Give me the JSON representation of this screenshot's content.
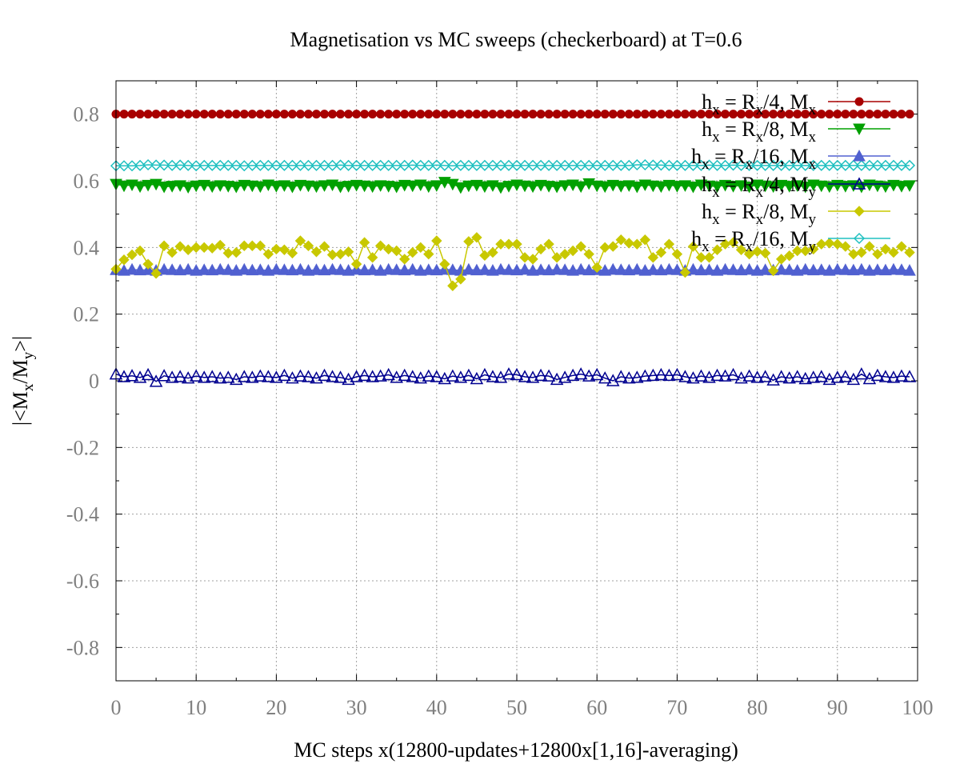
{
  "chart_data": {
    "type": "line",
    "title": "Magnetisation vs MC sweeps (checkerboard) at T=0.6",
    "xlabel": "MC steps x(12800-updates+12800x[1,16]-averaging)",
    "ylabel_parts": {
      "open": "|<M",
      "x": "x",
      "slash": "/M",
      "y": "y",
      "close": ">|"
    },
    "xlim": [
      0,
      100
    ],
    "ylim": [
      -0.9,
      0.9
    ],
    "x_ticks": [
      0,
      10,
      20,
      30,
      40,
      50,
      60,
      70,
      80,
      90,
      100
    ],
    "x_tick_labels": [
      "0",
      "10",
      "20",
      "30",
      "40",
      "50",
      "60",
      "70",
      "80",
      "90",
      "100"
    ],
    "y_ticks": [
      -0.8,
      -0.6,
      -0.4,
      -0.2,
      0,
      0.2,
      0.4,
      0.6,
      0.8
    ],
    "y_tick_labels": [
      "-0.8",
      "-0.6",
      "-0.4",
      "-0.2",
      "0",
      "0.2",
      "0.4",
      "0.6",
      "0.8"
    ],
    "grid": true,
    "legend_position": "top-right",
    "series": [
      {
        "name": "h_x = R_x/4, M_x",
        "legend": {
          "h": "h",
          "hsub": "x",
          "mid": " = R",
          "rsub": "x",
          "frac": "/4, M",
          "msub": "x"
        },
        "color": "#a80000",
        "marker": "circle-filled",
        "values": [
          0.8,
          0.8,
          0.8,
          0.8,
          0.8,
          0.8,
          0.8,
          0.8,
          0.8,
          0.8,
          0.8,
          0.8,
          0.8,
          0.8,
          0.8,
          0.8,
          0.8,
          0.8,
          0.8,
          0.8,
          0.8,
          0.8,
          0.8,
          0.8,
          0.8,
          0.8,
          0.8,
          0.8,
          0.8,
          0.8,
          0.8,
          0.8,
          0.8,
          0.8,
          0.8,
          0.8,
          0.8,
          0.8,
          0.8,
          0.8,
          0.8,
          0.8,
          0.8,
          0.8,
          0.8,
          0.8,
          0.8,
          0.8,
          0.8,
          0.8,
          0.8,
          0.8,
          0.8,
          0.8,
          0.8,
          0.8,
          0.8,
          0.8,
          0.8,
          0.8,
          0.8,
          0.8,
          0.8,
          0.8,
          0.8,
          0.8,
          0.8,
          0.8,
          0.8,
          0.8,
          0.8,
          0.8,
          0.8,
          0.8,
          0.8,
          0.8,
          0.8,
          0.8,
          0.8,
          0.8,
          0.8,
          0.8,
          0.8,
          0.8,
          0.8,
          0.8,
          0.8,
          0.8,
          0.8,
          0.8,
          0.8,
          0.8,
          0.8,
          0.8,
          0.8,
          0.8,
          0.8,
          0.8,
          0.8,
          0.8
        ]
      },
      {
        "name": "h_x = R_x/8, M_x",
        "legend": {
          "h": "h",
          "hsub": "x",
          "mid": " = R",
          "rsub": "x",
          "frac": "/8, M",
          "msub": "x"
        },
        "color": "#00a000",
        "marker": "triangle-down-filled",
        "values": [
          0.59,
          0.585,
          0.588,
          0.583,
          0.587,
          0.59,
          0.582,
          0.584,
          0.586,
          0.581,
          0.585,
          0.587,
          0.583,
          0.586,
          0.584,
          0.582,
          0.587,
          0.585,
          0.583,
          0.588,
          0.584,
          0.586,
          0.582,
          0.587,
          0.585,
          0.583,
          0.586,
          0.588,
          0.582,
          0.584,
          0.587,
          0.585,
          0.583,
          0.586,
          0.584,
          0.582,
          0.587,
          0.585,
          0.588,
          0.583,
          0.586,
          0.596,
          0.59,
          0.58,
          0.585,
          0.587,
          0.583,
          0.586,
          0.58,
          0.584,
          0.588,
          0.585,
          0.583,
          0.587,
          0.584,
          0.582,
          0.586,
          0.588,
          0.583,
          0.592,
          0.585,
          0.583,
          0.587,
          0.584,
          0.586,
          0.582,
          0.588,
          0.585,
          0.583,
          0.587,
          0.584,
          0.586,
          0.582,
          0.588,
          0.585,
          0.583,
          0.587,
          0.584,
          0.586,
          0.582,
          0.588,
          0.585,
          0.583,
          0.587,
          0.584,
          0.586,
          0.582,
          0.588,
          0.585,
          0.583,
          0.587,
          0.584,
          0.586,
          0.582,
          0.588,
          0.585,
          0.583,
          0.587,
          0.584,
          0.586
        ]
      },
      {
        "name": "h_x = R_x/16, M_x",
        "legend": {
          "h": "h",
          "hsub": "x",
          "mid": " = R",
          "rsub": "x",
          "frac": "/16, M",
          "msub": "x"
        },
        "color": "#5060d0",
        "marker": "triangle-up-filled",
        "values": [
          0.333,
          0.331,
          0.334,
          0.332,
          0.333,
          0.331,
          0.334,
          0.333,
          0.332,
          0.334,
          0.331,
          0.333,
          0.332,
          0.334,
          0.333,
          0.331,
          0.334,
          0.332,
          0.333,
          0.331,
          0.334,
          0.333,
          0.332,
          0.334,
          0.331,
          0.333,
          0.332,
          0.334,
          0.333,
          0.331,
          0.334,
          0.332,
          0.333,
          0.331,
          0.334,
          0.333,
          0.332,
          0.334,
          0.331,
          0.333,
          0.332,
          0.334,
          0.333,
          0.331,
          0.334,
          0.332,
          0.333,
          0.331,
          0.334,
          0.333,
          0.332,
          0.334,
          0.331,
          0.333,
          0.332,
          0.334,
          0.333,
          0.331,
          0.334,
          0.332,
          0.333,
          0.331,
          0.334,
          0.333,
          0.332,
          0.334,
          0.331,
          0.333,
          0.332,
          0.334,
          0.333,
          0.331,
          0.334,
          0.332,
          0.333,
          0.331,
          0.334,
          0.333,
          0.332,
          0.334,
          0.331,
          0.333,
          0.332,
          0.334,
          0.333,
          0.331,
          0.334,
          0.332,
          0.333,
          0.331,
          0.334,
          0.333,
          0.332,
          0.334,
          0.331,
          0.333,
          0.332,
          0.334,
          0.333,
          0.331
        ]
      },
      {
        "name": "h_x = R_x/4, M_y",
        "legend": {
          "h": "h",
          "hsub": "x",
          "mid": " = R",
          "rsub": "x",
          "frac": "/4, M",
          "msub": "y"
        },
        "color": "#000090",
        "marker": "triangle-up-open",
        "values": [
          0.02,
          0.012,
          0.015,
          0.01,
          0.018,
          -0.002,
          0.015,
          0.01,
          0.012,
          0.008,
          0.014,
          0.01,
          0.012,
          0.008,
          0.01,
          0.004,
          0.012,
          0.01,
          0.014,
          0.012,
          0.01,
          0.016,
          0.008,
          0.014,
          0.012,
          0.008,
          0.016,
          0.012,
          0.01,
          0.004,
          0.012,
          0.016,
          0.012,
          0.014,
          0.018,
          0.01,
          0.016,
          0.012,
          0.008,
          0.014,
          0.012,
          0.006,
          0.014,
          0.01,
          0.016,
          0.006,
          0.018,
          0.012,
          0.01,
          0.02,
          0.018,
          0.012,
          0.01,
          0.016,
          0.014,
          0.004,
          0.01,
          0.016,
          0.02,
          0.014,
          0.018,
          0.008,
          0.0,
          0.012,
          0.008,
          0.01,
          0.014,
          0.016,
          0.018,
          0.016,
          0.018,
          0.012,
          0.008,
          0.014,
          0.01,
          0.016,
          0.014,
          0.018,
          0.008,
          0.014,
          0.01,
          0.012,
          0.002,
          0.012,
          0.008,
          0.012,
          0.006,
          0.01,
          0.012,
          0.004,
          0.01,
          0.012,
          0.004,
          0.02,
          0.006,
          0.016,
          0.012,
          0.01,
          0.014,
          0.012
        ]
      },
      {
        "name": "h_x = R_x/8, M_y",
        "legend": {
          "h": "h",
          "hsub": "x",
          "mid": " = R",
          "rsub": "x",
          "frac": "/8, M",
          "msub": "y"
        },
        "color": "#c8c800",
        "marker": "diamond-filled",
        "values": [
          0.335,
          0.363,
          0.378,
          0.39,
          0.35,
          0.322,
          0.405,
          0.385,
          0.403,
          0.393,
          0.4,
          0.4,
          0.398,
          0.407,
          0.383,
          0.385,
          0.405,
          0.405,
          0.405,
          0.38,
          0.395,
          0.393,
          0.383,
          0.42,
          0.405,
          0.387,
          0.403,
          0.378,
          0.38,
          0.387,
          0.35,
          0.415,
          0.37,
          0.405,
          0.395,
          0.39,
          0.365,
          0.385,
          0.4,
          0.38,
          0.42,
          0.35,
          0.285,
          0.305,
          0.418,
          0.43,
          0.376,
          0.385,
          0.41,
          0.41,
          0.41,
          0.37,
          0.365,
          0.395,
          0.41,
          0.37,
          0.38,
          0.39,
          0.403,
          0.38,
          0.34,
          0.4,
          0.403,
          0.423,
          0.413,
          0.41,
          0.423,
          0.37,
          0.385,
          0.41,
          0.38,
          0.325,
          0.403,
          0.37,
          0.37,
          0.393,
          0.41,
          0.415,
          0.393,
          0.38,
          0.388,
          0.383,
          0.33,
          0.365,
          0.375,
          0.39,
          0.39,
          0.395,
          0.41,
          0.413,
          0.41,
          0.403,
          0.38,
          0.385,
          0.403,
          0.38,
          0.395,
          0.385,
          0.403,
          0.385
        ]
      },
      {
        "name": "h_x = R_x/16, M_y",
        "legend": {
          "h": "h",
          "hsub": "x",
          "mid": " = R",
          "rsub": "x",
          "frac": "/16, M",
          "msub": "y"
        },
        "color": "#20c0c0",
        "marker": "diamond-open",
        "values": [
          0.645,
          0.645,
          0.645,
          0.646,
          0.648,
          0.647,
          0.647,
          0.646,
          0.647,
          0.646,
          0.645,
          0.646,
          0.646,
          0.646,
          0.646,
          0.646,
          0.645,
          0.646,
          0.646,
          0.646,
          0.646,
          0.646,
          0.646,
          0.646,
          0.646,
          0.646,
          0.646,
          0.646,
          0.647,
          0.646,
          0.646,
          0.646,
          0.646,
          0.646,
          0.646,
          0.646,
          0.646,
          0.647,
          0.646,
          0.646,
          0.647,
          0.646,
          0.645,
          0.646,
          0.646,
          0.646,
          0.646,
          0.646,
          0.646,
          0.646,
          0.646,
          0.646,
          0.646,
          0.646,
          0.646,
          0.646,
          0.646,
          0.646,
          0.646,
          0.646,
          0.646,
          0.646,
          0.646,
          0.646,
          0.646,
          0.648,
          0.648,
          0.647,
          0.647,
          0.646,
          0.646,
          0.646,
          0.646,
          0.646,
          0.647,
          0.646,
          0.646,
          0.647,
          0.646,
          0.646,
          0.646,
          0.646,
          0.646,
          0.646,
          0.646,
          0.646,
          0.646,
          0.646,
          0.646,
          0.646,
          0.646,
          0.646,
          0.646,
          0.646,
          0.646,
          0.646,
          0.646,
          0.646,
          0.646,
          0.646
        ]
      }
    ]
  }
}
